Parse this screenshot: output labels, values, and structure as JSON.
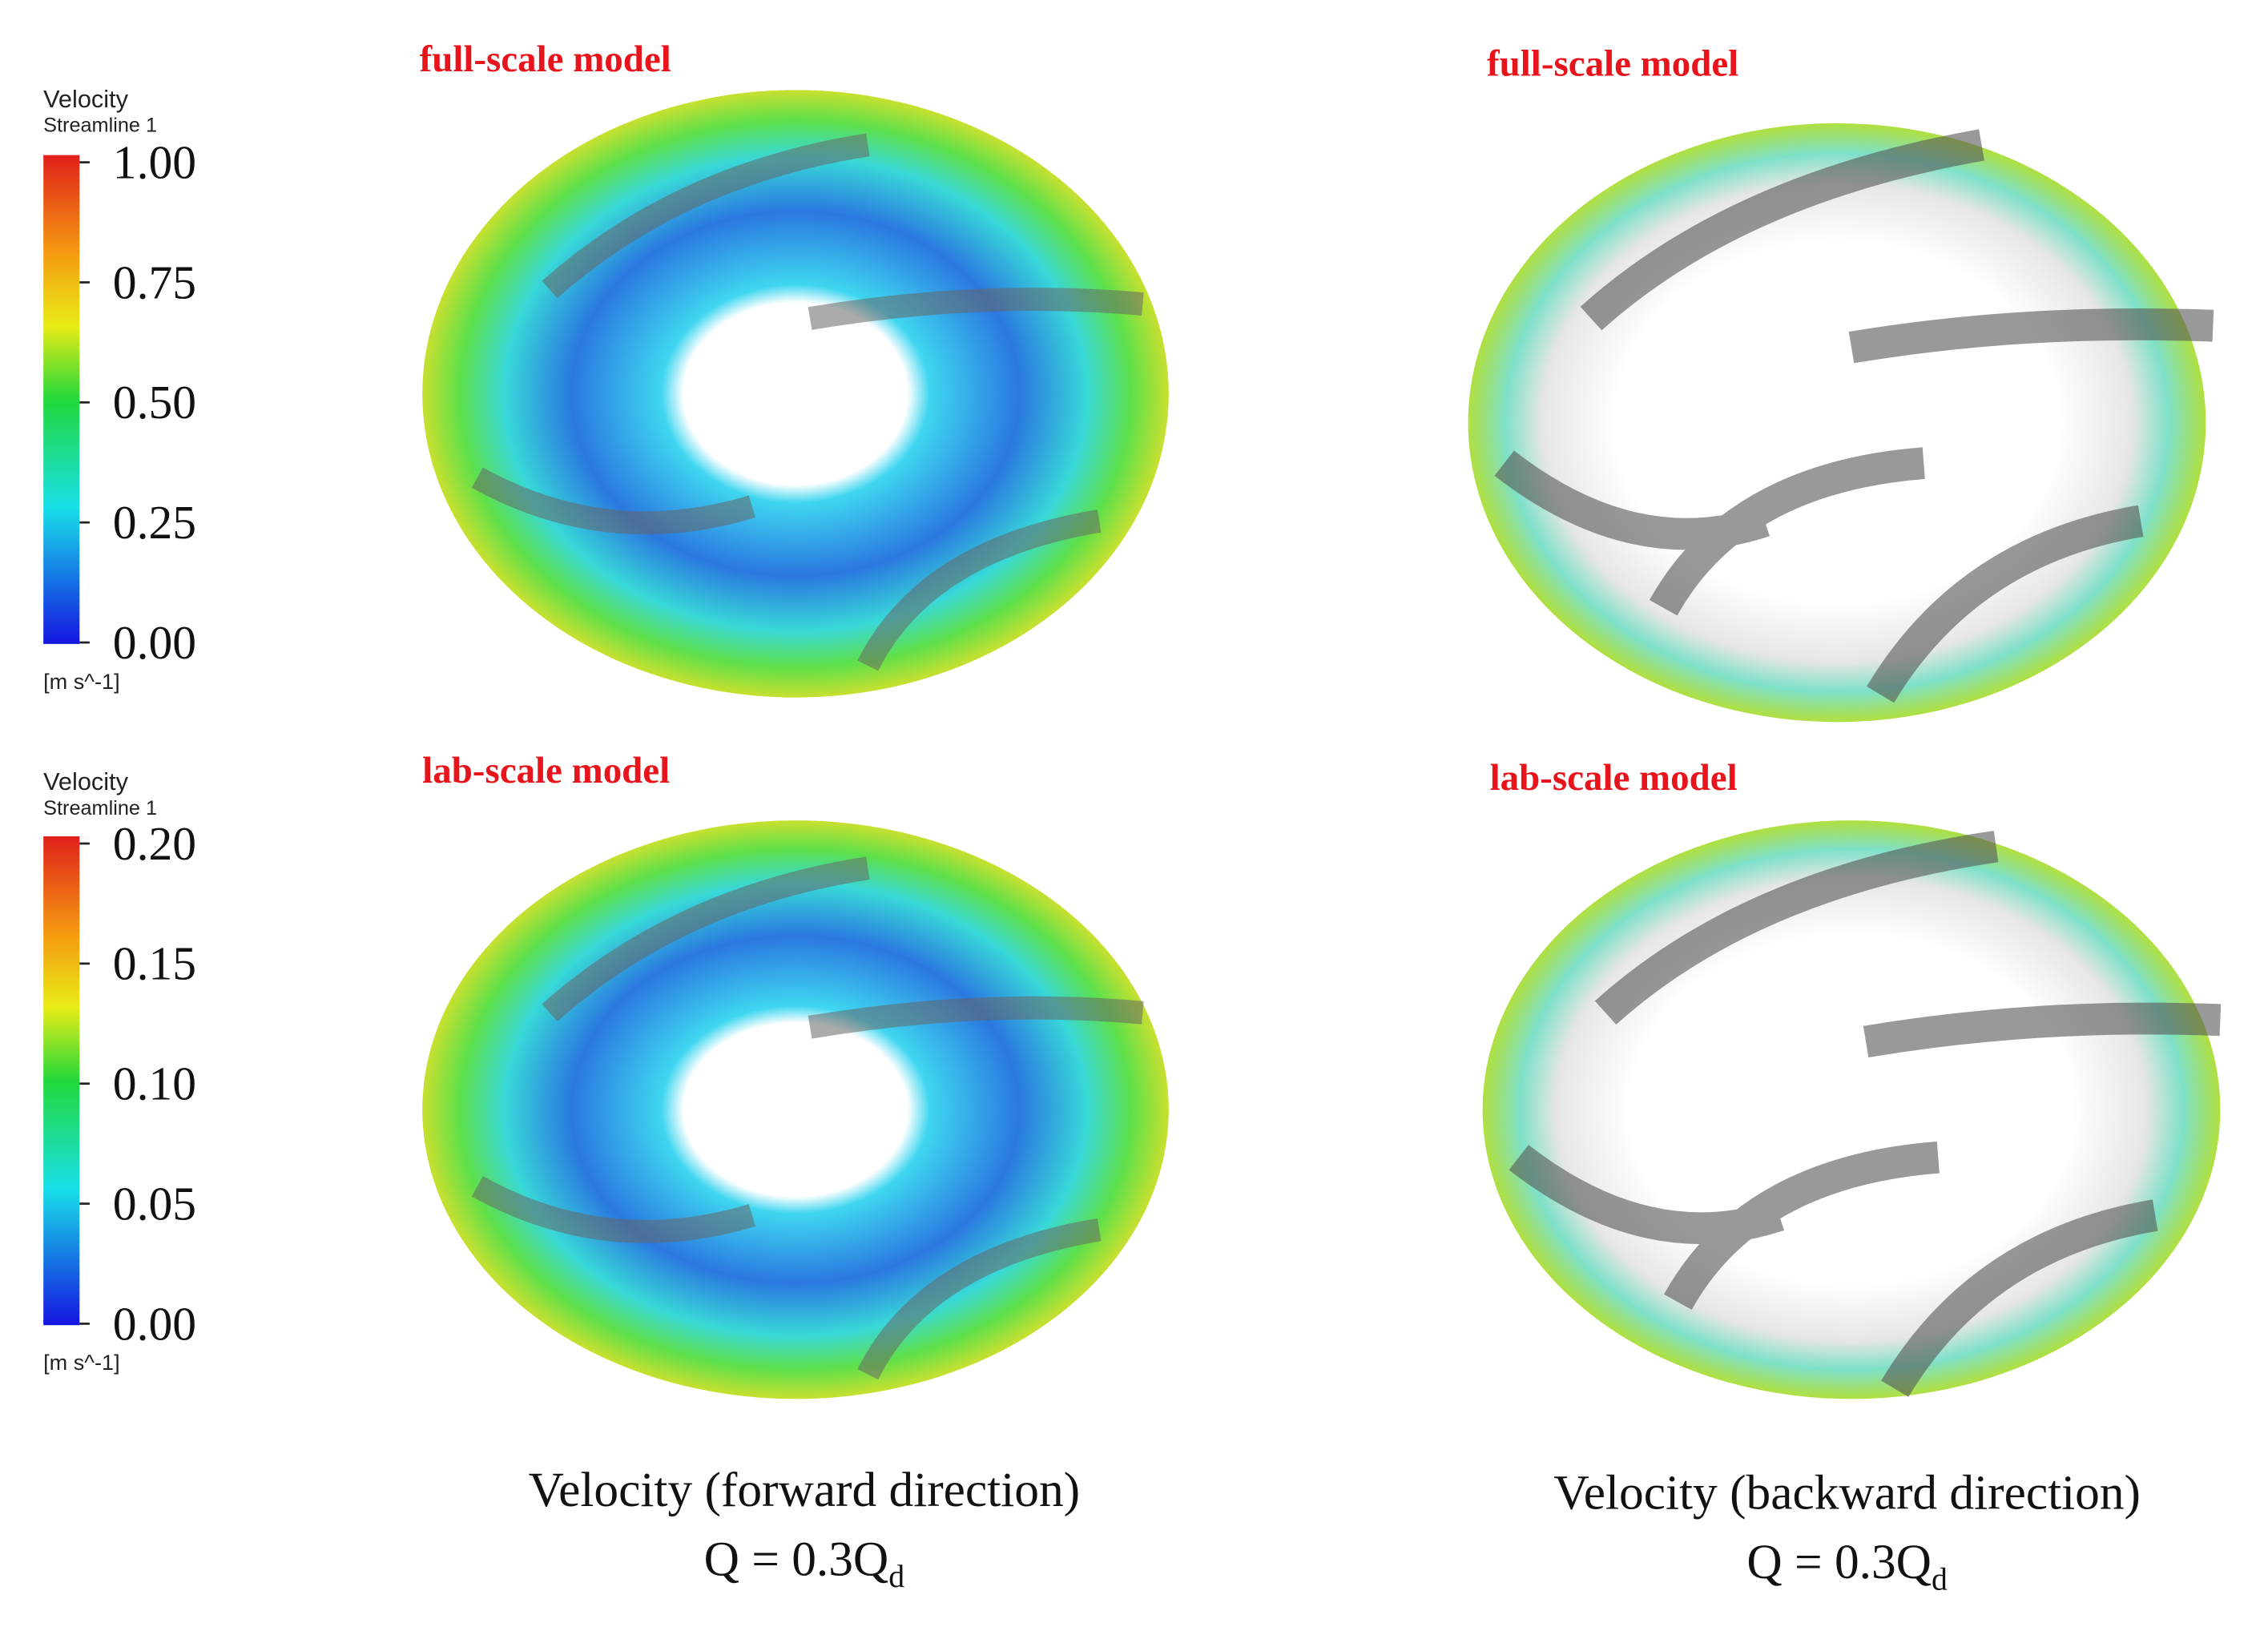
{
  "colorbars": [
    {
      "title": "Velocity",
      "subtitle": "Streamline 1",
      "ticks": [
        "1.00",
        "0.75",
        "0.50",
        "0.25",
        "0.00"
      ],
      "unit": "[m s^-1]"
    },
    {
      "title": "Velocity",
      "subtitle": "Streamline 1",
      "ticks": [
        "0.20",
        "0.15",
        "0.10",
        "0.05",
        "0.00"
      ],
      "unit": "[m s^-1]"
    }
  ],
  "panels": [
    {
      "label": "full-scale model"
    },
    {
      "label": "full-scale model"
    },
    {
      "label": "lab-scale model"
    },
    {
      "label": "lab-scale model"
    }
  ],
  "captions": [
    {
      "line1": "Velocity (forward direction)",
      "line2": "Q = 0.3Q",
      "subscript": "d"
    },
    {
      "line1": "Velocity (backward direction)",
      "line2": "Q = 0.3Q",
      "subscript": "d"
    }
  ]
}
